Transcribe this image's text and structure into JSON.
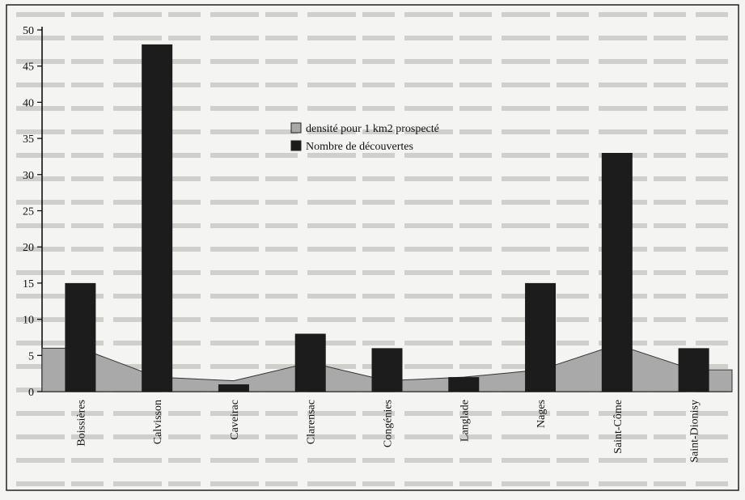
{
  "chart_data": {
    "type": "bar",
    "categories": [
      "Boissières",
      "Calvisson",
      "Caveirac",
      "Clarensac",
      "Congénies",
      "Langlade",
      "Nages",
      "Saint-Côme",
      "Saint-Dionisy"
    ],
    "series": [
      {
        "name": "densité pour 1 km2 prospecté",
        "style": "area",
        "color": "#a9a9a9",
        "values": [
          6,
          2,
          1.5,
          4,
          1.5,
          2,
          3,
          6.5,
          3
        ]
      },
      {
        "name": "Nombre de découvertes",
        "style": "bar",
        "color": "#1c1c1c",
        "values": [
          15,
          48,
          1,
          8,
          6,
          2,
          15,
          33,
          6
        ]
      }
    ],
    "yticks": [
      "0",
      "5",
      "10",
      "15",
      "20",
      "25",
      "30",
      "35",
      "40",
      "45",
      "50"
    ],
    "ylim": [
      0,
      50
    ],
    "legend_position": "upper-center",
    "grid": false
  }
}
